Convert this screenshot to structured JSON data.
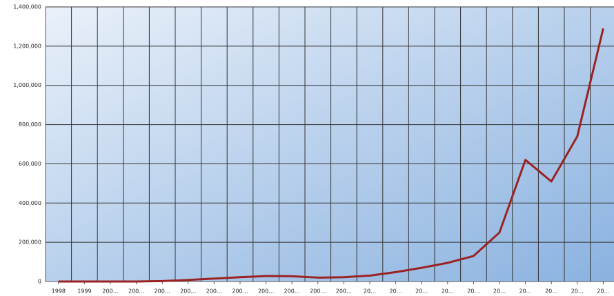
{
  "chart_data": {
    "type": "line",
    "categories": [
      "1998",
      "1999",
      "200…",
      "200…",
      "200…",
      "200…",
      "200…",
      "200…",
      "200…",
      "200…",
      "200…",
      "200…",
      "20…",
      "20…",
      "20…",
      "20…",
      "20…",
      "20…",
      "20…",
      "20…",
      "20…",
      "20…"
    ],
    "values": [
      0,
      0,
      0,
      0,
      2000,
      8000,
      15000,
      22000,
      28000,
      27000,
      20000,
      22000,
      30000,
      48000,
      70000,
      95000,
      130000,
      250000,
      620000,
      510000,
      740000,
      1290000
    ],
    "color": "#9b2222",
    "ylim": [
      0,
      1400000
    ],
    "yticks": [
      0,
      {
        "value": 200000,
        "label": "200,000"
      },
      {
        "value": 400000,
        "label": "400,000"
      },
      {
        "value": 600000,
        "label": "600,000"
      },
      {
        "value": 800000,
        "label": "800,000"
      },
      {
        "value": 1000000,
        "label": "1,000,000"
      },
      {
        "value": 1200000,
        "label": "1,200,000"
      },
      {
        "value": 1400000,
        "label": "1,400,000"
      }
    ],
    "grid": true
  }
}
